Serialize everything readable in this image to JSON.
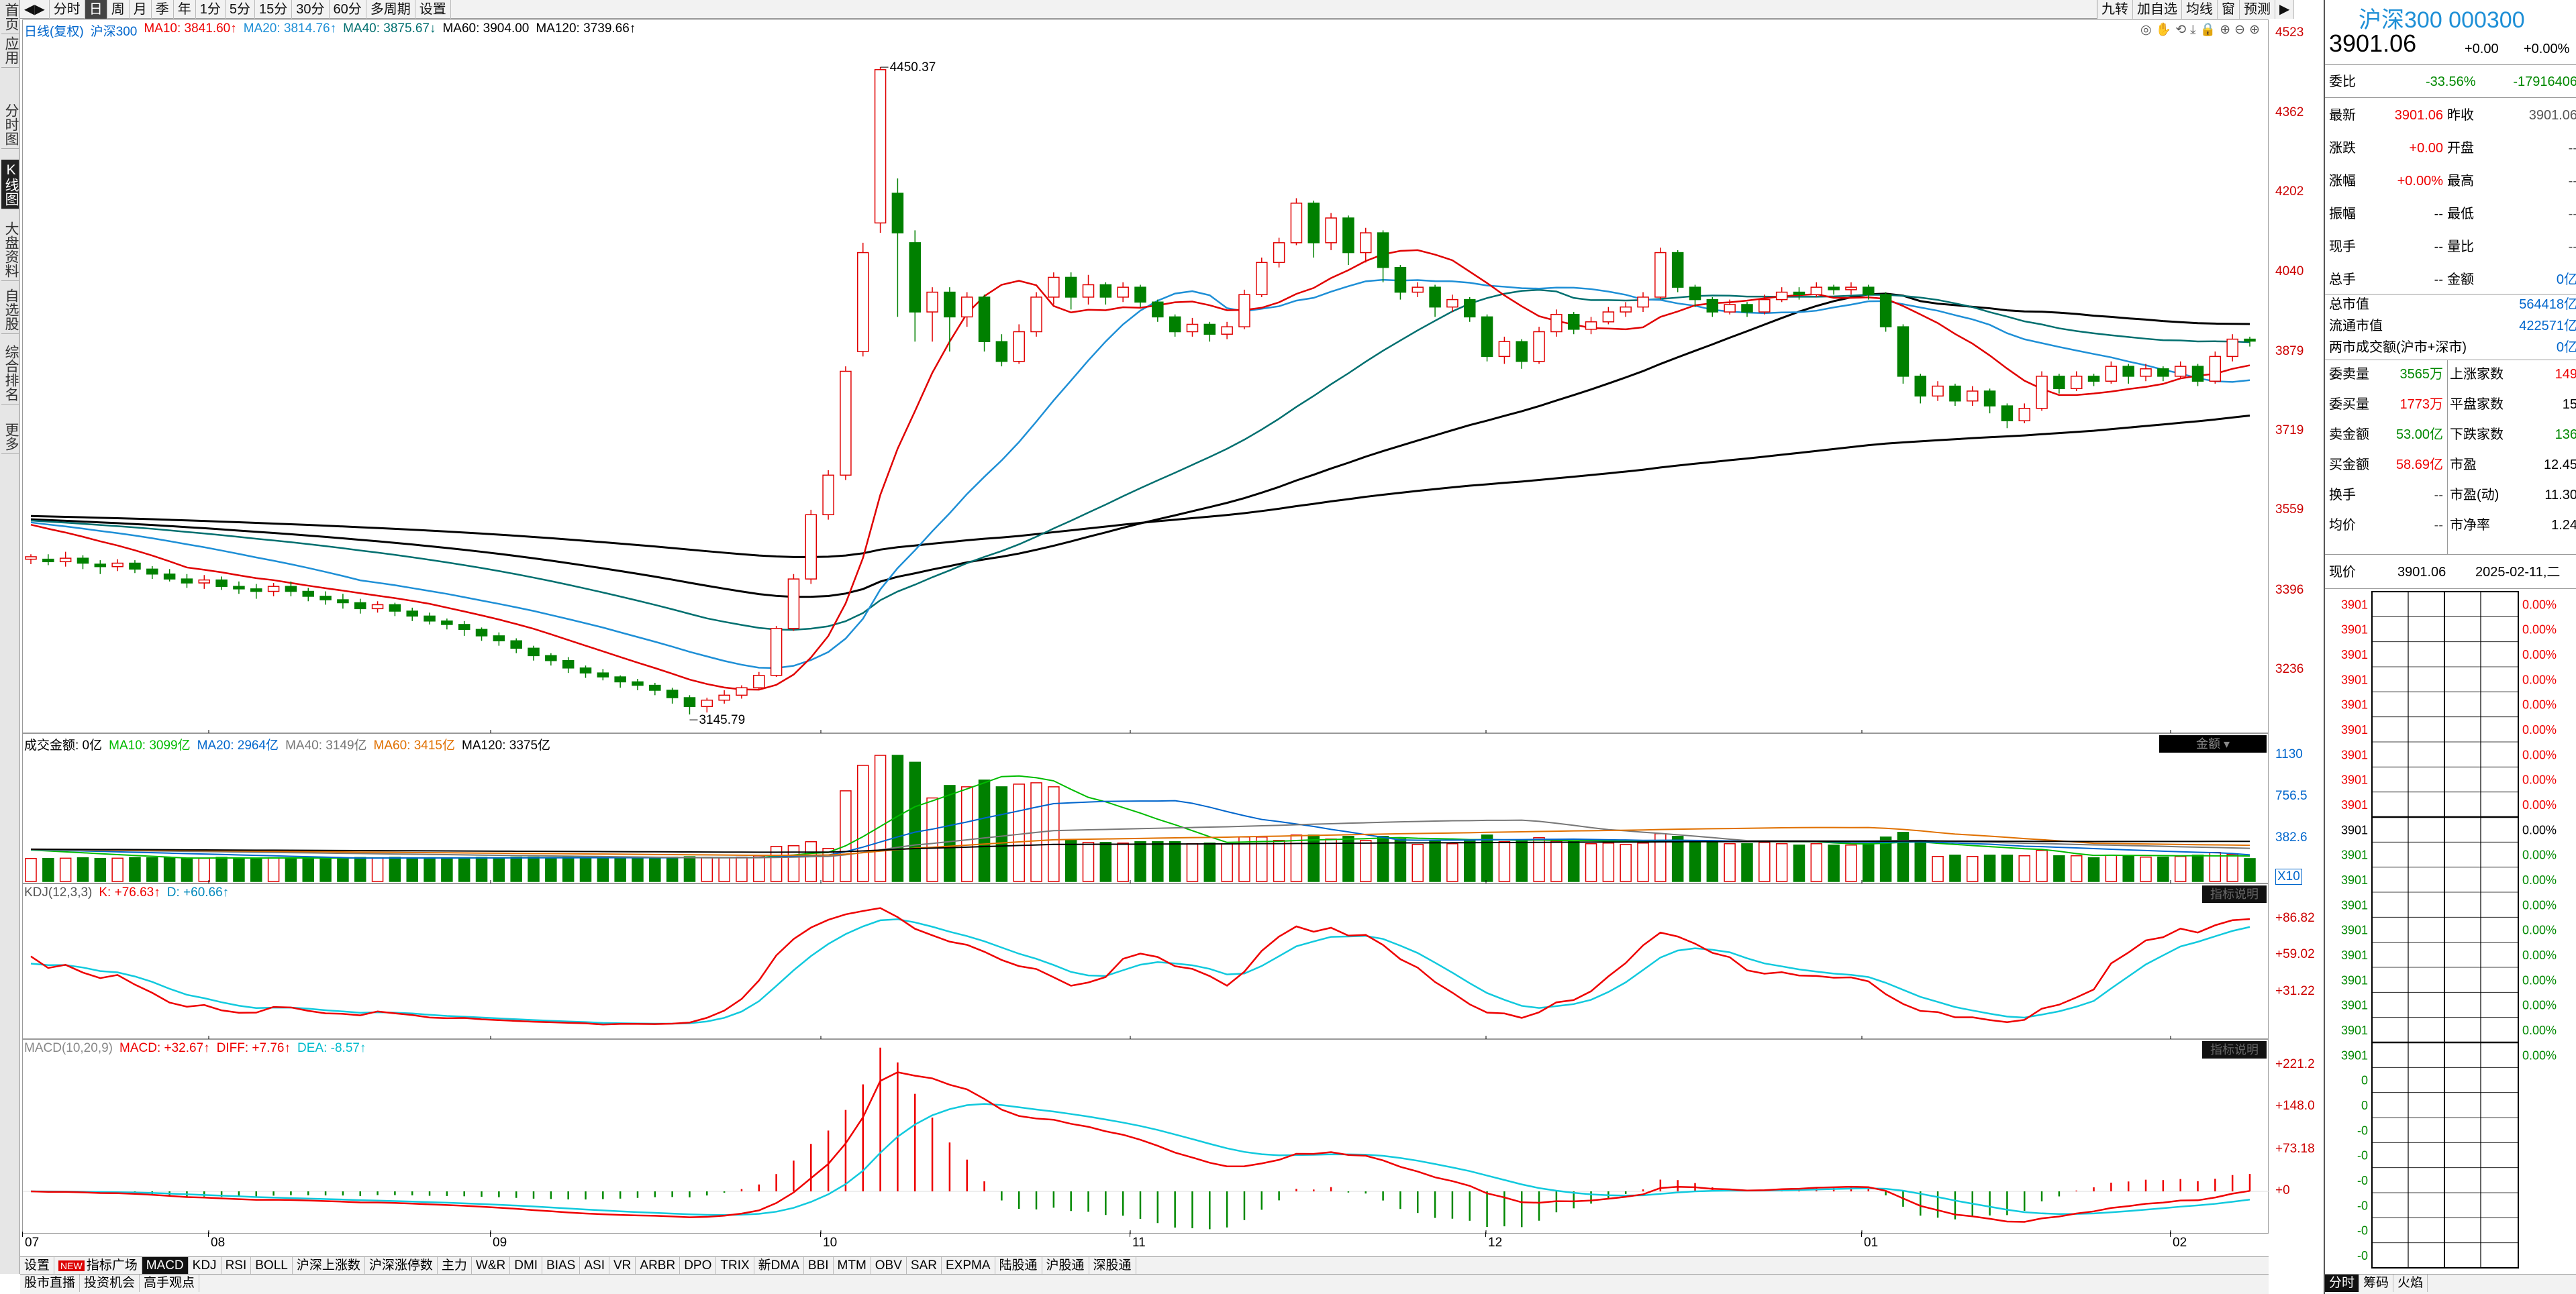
{
  "leftbar": [
    "首页",
    "应用",
    "分时图",
    "K线图",
    "大盘资料",
    "自选股",
    "综合排名",
    "更多"
  ],
  "toolbar": {
    "items": [
      "分时",
      "日",
      "周",
      "月",
      "季",
      "年",
      "1分",
      "5分",
      "15分",
      "30分",
      "60分",
      "多周期",
      "设置"
    ],
    "right_items": [
      "九转",
      "加自选",
      "均线",
      "窗",
      "预测"
    ]
  },
  "main_legend": {
    "prefix": "日线(复权)",
    "name": "沪深300",
    "items": [
      "MA10: 3841.60↑",
      "MA20: 3814.76↑",
      "MA40: 3875.67↓",
      "MA60: 3904.00",
      "MA120: 3739.66↑"
    ]
  },
  "main_axis": [
    "4523",
    "4362",
    "4202",
    "4040",
    "3879",
    "3719",
    "3559",
    "3396",
    "3236"
  ],
  "annotations": {
    "high": "4450.37",
    "low": "3145.79"
  },
  "vol_legend": {
    "prefix": "成交金额: 0亿",
    "items": [
      "MA10: 3099亿",
      "MA20: 2964亿",
      "MA40: 3149亿",
      "MA60: 3415亿",
      "MA120: 3375亿"
    ],
    "button": "金额",
    "axis": [
      "1130",
      "756.5",
      "382.6"
    ],
    "unit": "X10"
  },
  "kdj_legend": {
    "prefix": "KDJ(12,3,3)",
    "items": [
      "K: +76.63↑",
      "D: +60.66↑"
    ],
    "button": "指标说明",
    "axis": [
      "+86.82",
      "+59.02",
      "+31.22"
    ]
  },
  "macd_legend": {
    "prefix": "MACD(10,20,9)",
    "items": [
      "MACD: +32.67↑",
      "DIFF: +7.76↑",
      "DEA: -8.57↑"
    ],
    "button": "指标说明",
    "axis": [
      "+221.2",
      "+148.0",
      "+73.18",
      "+0"
    ]
  },
  "x_axis": [
    "07",
    "08",
    "09",
    "10",
    "11",
    "12",
    "01",
    "02"
  ],
  "bottom_tabs": [
    "设置",
    "指标广场",
    "MACD",
    "KDJ",
    "RSI",
    "BOLL",
    "沪深上涨数",
    "沪深涨停数",
    "主力",
    "W&R",
    "DMI",
    "BIAS",
    "ASI",
    "VR",
    "ARBR",
    "DPO",
    "TRIX",
    "新DMA",
    "BBI",
    "MTM",
    "OBV",
    "SAR",
    "EXPMA",
    "陆股通",
    "沪股通",
    "深股通"
  ],
  "bottom_new_badge": "NEW",
  "bottom_tabs2": [
    "股市直播",
    "投资机会",
    "高手观点"
  ],
  "quote": {
    "title": "沪深300 000300",
    "price": "3901.06",
    "change": "+0.00",
    "change_pct": "+0.00%",
    "weibi_label": "委比",
    "weibi": "-33.56%",
    "weicha": "-17916406",
    "rows": [
      [
        "最新",
        "3901.06",
        "昨收",
        "3901.06"
      ],
      [
        "涨跌",
        "+0.00",
        "开盘",
        "--"
      ],
      [
        "涨幅",
        "+0.00%",
        "最高",
        "--"
      ],
      [
        "振幅",
        "--",
        "最低",
        "--"
      ],
      [
        "现手",
        "--",
        "量比",
        "--"
      ],
      [
        "总手",
        "--",
        "金额",
        "0亿"
      ]
    ],
    "caps": [
      [
        "总市值",
        "564418亿"
      ],
      [
        "流通市值",
        "422571亿"
      ],
      [
        "两市成交额(沪市+深市)",
        "0亿"
      ]
    ],
    "stats": [
      [
        "委卖量",
        "3565万",
        "上涨家数",
        "149"
      ],
      [
        "委买量",
        "1773万",
        "平盘家数",
        "15"
      ],
      [
        "卖金额",
        "53.00亿",
        "下跌家数",
        "136"
      ],
      [
        "买金额",
        "58.69亿",
        "市盈",
        "12.45"
      ],
      [
        "换手",
        "--",
        "市盈(动)",
        "11.30"
      ],
      [
        "均价",
        "--",
        "市净率",
        "1.24"
      ]
    ],
    "now_label": "现价",
    "now_value": "3901.06",
    "now_date": "2025-02-11,二",
    "mini_left": [
      "3901",
      "3901",
      "3901",
      "3901",
      "3901",
      "3901",
      "3901",
      "3901",
      "3901",
      "3901",
      "3901",
      "3901",
      "3901",
      "3901",
      "3901",
      "3901",
      "3901",
      "3901",
      "3901",
      "0",
      "0",
      "-0",
      "-0",
      "-0",
      "-0",
      "-0",
      "-0"
    ],
    "mini_right": [
      "0.00%",
      "0.00%",
      "0.00%",
      "0.00%",
      "0.00%",
      "0.00%",
      "0.00%",
      "0.00%",
      "0.00%",
      "0.00%",
      "0.00%",
      "0.00%",
      "0.00%",
      "0.00%",
      "0.00%",
      "0.00%",
      "0.00%",
      "0.00%",
      "0.00%"
    ],
    "bottom_tabs": [
      "分时",
      "筹码",
      "火焰"
    ]
  },
  "colors": {
    "up": "#e00000",
    "down": "#008000",
    "ma10": "#e00000",
    "ma20": "#1e8fd6",
    "ma40": "#006f6f",
    "ma60": "#000000",
    "ma120": "#000000"
  },
  "chart_data": {
    "type": "candlestick",
    "x_months": [
      "07",
      "08",
      "09",
      "10",
      "11",
      "12",
      "01",
      "02"
    ],
    "ylim": [
      3145.79,
      4523
    ],
    "candles": [
      [
        3460,
        3465,
        3470,
        3450
      ],
      [
        3460,
        3455,
        3470,
        3448
      ],
      [
        3455,
        3462,
        3475,
        3445
      ],
      [
        3462,
        3452,
        3468,
        3440
      ],
      [
        3450,
        3445,
        3458,
        3430
      ],
      [
        3445,
        3452,
        3460,
        3436
      ],
      [
        3452,
        3440,
        3458,
        3432
      ],
      [
        3440,
        3430,
        3446,
        3420
      ],
      [
        3430,
        3420,
        3440,
        3415
      ],
      [
        3420,
        3412,
        3430,
        3402
      ],
      [
        3412,
        3418,
        3428,
        3400
      ],
      [
        3418,
        3405,
        3425,
        3398
      ],
      [
        3405,
        3400,
        3415,
        3390
      ],
      [
        3400,
        3395,
        3410,
        3380
      ],
      [
        3395,
        3405,
        3412,
        3385
      ],
      [
        3405,
        3395,
        3415,
        3385
      ],
      [
        3395,
        3385,
        3402,
        3375
      ],
      [
        3385,
        3378,
        3395,
        3368
      ],
      [
        3378,
        3372,
        3390,
        3360
      ],
      [
        3372,
        3360,
        3380,
        3350
      ],
      [
        3360,
        3368,
        3375,
        3352
      ],
      [
        3368,
        3355,
        3372,
        3345
      ],
      [
        3355,
        3345,
        3362,
        3335
      ],
      [
        3345,
        3335,
        3352,
        3328
      ],
      [
        3335,
        3328,
        3340,
        3318
      ],
      [
        3328,
        3318,
        3335,
        3305
      ],
      [
        3318,
        3305,
        3322,
        3295
      ],
      [
        3305,
        3295,
        3312,
        3285
      ],
      [
        3295,
        3280,
        3300,
        3270
      ],
      [
        3280,
        3265,
        3285,
        3255
      ],
      [
        3265,
        3255,
        3270,
        3245
      ],
      [
        3255,
        3240,
        3262,
        3230
      ],
      [
        3240,
        3230,
        3245,
        3220
      ],
      [
        3230,
        3222,
        3238,
        3215
      ],
      [
        3222,
        3212,
        3225,
        3200
      ],
      [
        3212,
        3205,
        3218,
        3195
      ],
      [
        3205,
        3195,
        3210,
        3185
      ],
      [
        3195,
        3180,
        3200,
        3168
      ],
      [
        3180,
        3162,
        3185,
        3146
      ],
      [
        3162,
        3175,
        3180,
        3150
      ],
      [
        3175,
        3185,
        3195,
        3168
      ],
      [
        3185,
        3200,
        3205,
        3178
      ],
      [
        3200,
        3225,
        3232,
        3195
      ],
      [
        3225,
        3320,
        3325,
        3222
      ],
      [
        3320,
        3420,
        3430,
        3315
      ],
      [
        3420,
        3550,
        3560,
        3410
      ],
      [
        3550,
        3630,
        3640,
        3540
      ],
      [
        3630,
        3840,
        3850,
        3620
      ],
      [
        3880,
        4080,
        4100,
        3870
      ],
      [
        4140,
        4450,
        4455,
        4120
      ],
      [
        4200,
        4120,
        4230,
        3950
      ],
      [
        4100,
        3960,
        4125,
        3900
      ],
      [
        3960,
        4000,
        4010,
        3900
      ],
      [
        4000,
        3950,
        4010,
        3880
      ],
      [
        3950,
        3990,
        4000,
        3930
      ],
      [
        3990,
        3900,
        3995,
        3880
      ],
      [
        3900,
        3860,
        3915,
        3850
      ],
      [
        3860,
        3920,
        3935,
        3855
      ],
      [
        3920,
        3990,
        4000,
        3910
      ],
      [
        3990,
        4030,
        4040,
        3975
      ],
      [
        4030,
        3990,
        4040,
        3965
      ],
      [
        3990,
        4015,
        4035,
        3975
      ],
      [
        4015,
        3990,
        4020,
        3975
      ],
      [
        3990,
        4010,
        4020,
        3980
      ],
      [
        4010,
        3980,
        4015,
        3970
      ],
      [
        3980,
        3950,
        3985,
        3940
      ],
      [
        3950,
        3920,
        3955,
        3910
      ],
      [
        3920,
        3935,
        3948,
        3910
      ],
      [
        3935,
        3915,
        3940,
        3900
      ],
      [
        3915,
        3930,
        3940,
        3905
      ],
      [
        3930,
        3995,
        4005,
        3925
      ],
      [
        3995,
        4060,
        4070,
        3990
      ],
      [
        4060,
        4100,
        4110,
        4050
      ],
      [
        4100,
        4180,
        4190,
        4095
      ],
      [
        4180,
        4100,
        4185,
        4070
      ],
      [
        4100,
        4150,
        4160,
        4085
      ],
      [
        4150,
        4080,
        4155,
        4055
      ],
      [
        4080,
        4120,
        4130,
        4060
      ],
      [
        4120,
        4050,
        4125,
        4020
      ],
      [
        4050,
        4000,
        4055,
        3985
      ],
      [
        4000,
        4010,
        4020,
        3990
      ],
      [
        4010,
        3970,
        4015,
        3950
      ],
      [
        3970,
        3985,
        3995,
        3960
      ],
      [
        3985,
        3950,
        3990,
        3940
      ],
      [
        3950,
        3870,
        3955,
        3860
      ],
      [
        3870,
        3900,
        3910,
        3855
      ],
      [
        3900,
        3860,
        3905,
        3845
      ],
      [
        3860,
        3920,
        3930,
        3855
      ],
      [
        3920,
        3955,
        3965,
        3910
      ],
      [
        3955,
        3925,
        3960,
        3915
      ],
      [
        3925,
        3940,
        3950,
        3915
      ],
      [
        3940,
        3960,
        3970,
        3935
      ],
      [
        3960,
        3970,
        3980,
        3950
      ],
      [
        3970,
        3990,
        4000,
        3960
      ],
      [
        3990,
        4080,
        4090,
        3985
      ],
      [
        4080,
        4010,
        4085,
        4000
      ],
      [
        4010,
        3985,
        4015,
        3970
      ],
      [
        3985,
        3960,
        3990,
        3950
      ],
      [
        3960,
        3975,
        3985,
        3955
      ],
      [
        3975,
        3960,
        3980,
        3950
      ],
      [
        3960,
        3985,
        3995,
        3955
      ],
      [
        3985,
        4000,
        4010,
        3980
      ],
      [
        4000,
        3995,
        4010,
        3985
      ],
      [
        3995,
        4010,
        4020,
        3990
      ],
      [
        4010,
        4005,
        4015,
        3995
      ],
      [
        4005,
        4010,
        4020,
        3995
      ],
      [
        4010,
        3995,
        4015,
        3985
      ],
      [
        3995,
        3930,
        4000,
        3920
      ],
      [
        3930,
        3830,
        3935,
        3815
      ],
      [
        3830,
        3790,
        3835,
        3775
      ],
      [
        3790,
        3810,
        3820,
        3780
      ],
      [
        3810,
        3780,
        3815,
        3770
      ],
      [
        3780,
        3800,
        3810,
        3770
      ],
      [
        3800,
        3770,
        3805,
        3755
      ],
      [
        3770,
        3740,
        3775,
        3725
      ],
      [
        3740,
        3765,
        3775,
        3735
      ],
      [
        3765,
        3830,
        3840,
        3760
      ],
      [
        3830,
        3805,
        3835,
        3795
      ],
      [
        3805,
        3830,
        3840,
        3800
      ],
      [
        3830,
        3820,
        3835,
        3810
      ],
      [
        3820,
        3850,
        3860,
        3815
      ],
      [
        3850,
        3830,
        3855,
        3815
      ],
      [
        3830,
        3845,
        3855,
        3820
      ],
      [
        3845,
        3830,
        3850,
        3820
      ],
      [
        3830,
        3850,
        3860,
        3825
      ],
      [
        3850,
        3820,
        3855,
        3810
      ],
      [
        3820,
        3870,
        3880,
        3815
      ],
      [
        3870,
        3905,
        3915,
        3860
      ],
      [
        3905,
        3901,
        3910,
        3890
      ]
    ],
    "high_label": 4450.37,
    "low_label": 3145.79
  }
}
